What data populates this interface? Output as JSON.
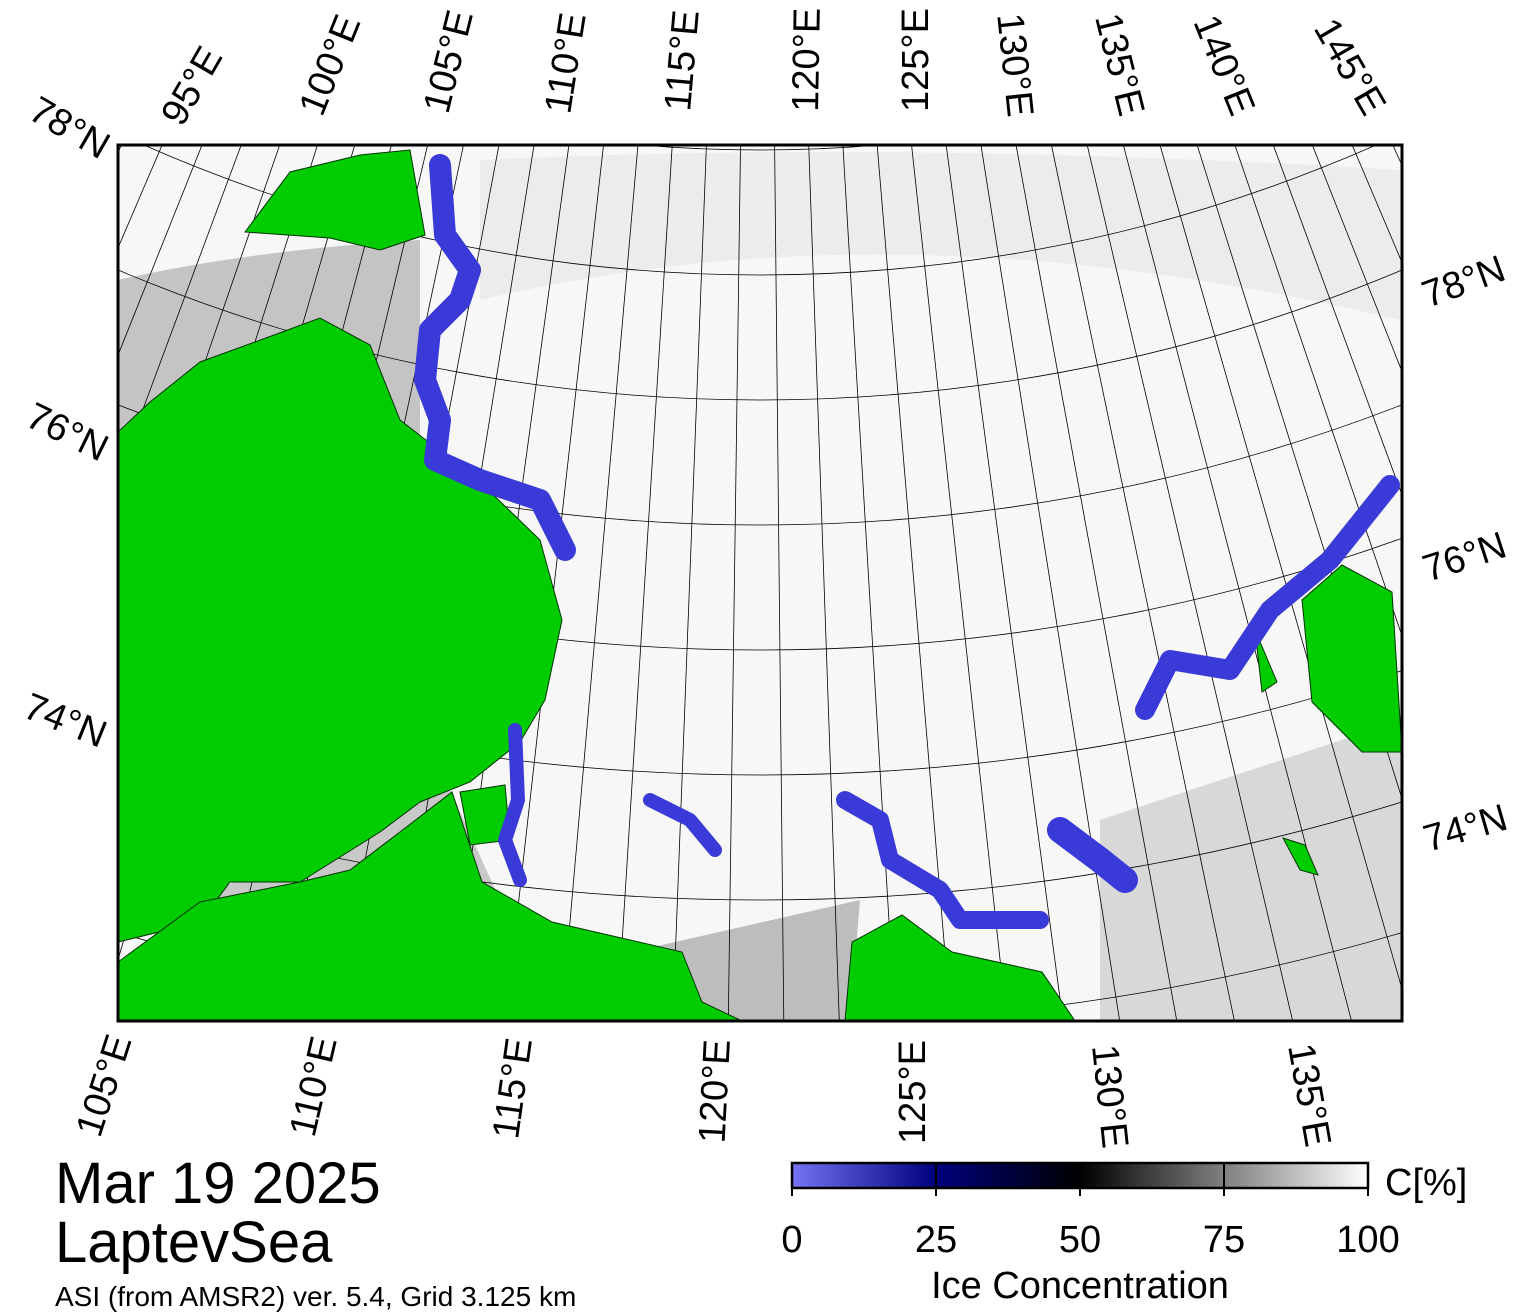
{
  "header": {
    "date": "Mar 19 2025",
    "region": "LaptevSea",
    "source": "ASI (from AMSR2) ver. 5.4,  Grid 3.125 km"
  },
  "map": {
    "top_labels": [
      "95°E",
      "100°E",
      "105°E",
      "110°E",
      "115°E",
      "120°E",
      "125°E",
      "130°E",
      "135°E",
      "140°E",
      "145°E"
    ],
    "left_labels": [
      "78°N",
      "76°N",
      "74°N"
    ],
    "right_labels": [
      "78°N",
      "76°N",
      "74°N"
    ],
    "bottom_labels": [
      "105°E",
      "110°E",
      "115°E",
      "120°E",
      "125°E",
      "130°E",
      "135°E"
    ]
  },
  "colorbar": {
    "unit": "C[%]",
    "title": "Ice Concentration",
    "lim": [
      0,
      100
    ],
    "ticks": [
      0,
      25,
      50,
      75,
      100
    ],
    "colors": [
      "#7474f4",
      "#00007c",
      "#000000",
      "#808080",
      "#ffffff"
    ]
  }
}
